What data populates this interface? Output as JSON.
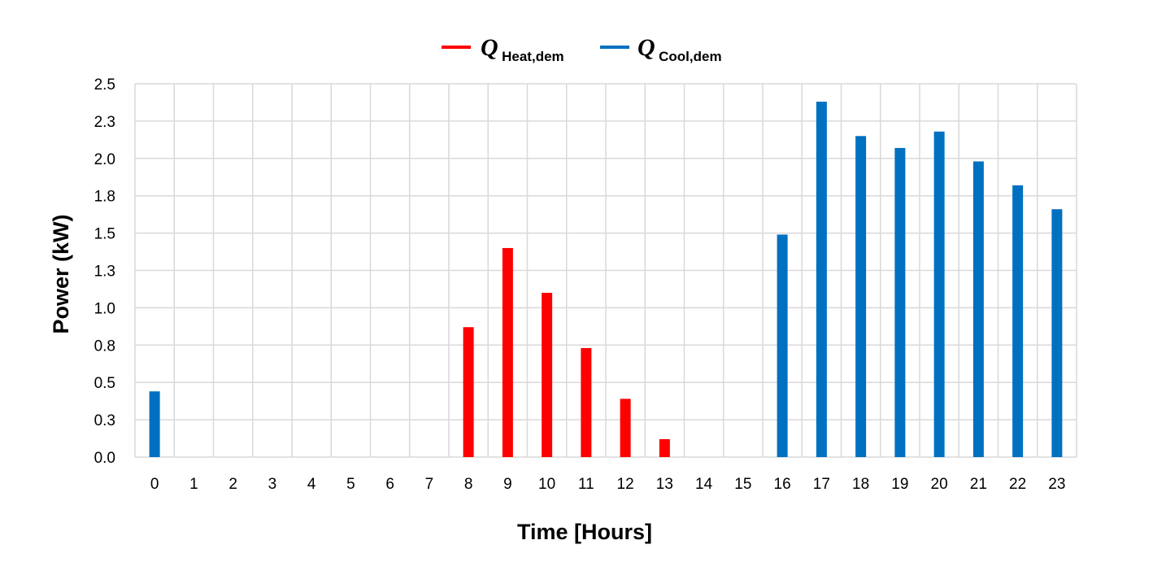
{
  "chart_data": {
    "type": "bar",
    "title": "",
    "xlabel": "Time [Hours]",
    "ylabel": "Power (kW)",
    "categories": [
      "0",
      "1",
      "2",
      "3",
      "4",
      "5",
      "6",
      "7",
      "8",
      "9",
      "10",
      "11",
      "12",
      "13",
      "14",
      "15",
      "16",
      "17",
      "18",
      "19",
      "20",
      "21",
      "22",
      "23"
    ],
    "yticks": [
      "0.0",
      "0.3",
      "0.5",
      "0.8",
      "1.0",
      "1.3",
      "1.5",
      "1.8",
      "2.0",
      "2.3",
      "2.5"
    ],
    "ylim": [
      0,
      2.5
    ],
    "grid": true,
    "legend_position": "top-center",
    "series": [
      {
        "name": "Q",
        "subscript": "Heat,dem",
        "color": "#ff0000",
        "values": [
          0,
          0,
          0,
          0,
          0,
          0,
          0,
          0,
          0.87,
          1.4,
          1.1,
          0.73,
          0.39,
          0.12,
          0,
          0,
          0,
          0,
          0,
          0,
          0,
          0,
          0,
          0
        ]
      },
      {
        "name": "Q",
        "subscript": "Cool,dem",
        "color": "#0070c0",
        "values": [
          0.44,
          0,
          0,
          0,
          0,
          0,
          0,
          0,
          0,
          0,
          0,
          0,
          0,
          0,
          0,
          0,
          1.49,
          2.38,
          2.15,
          2.07,
          2.18,
          1.98,
          1.82,
          1.66
        ]
      }
    ]
  }
}
